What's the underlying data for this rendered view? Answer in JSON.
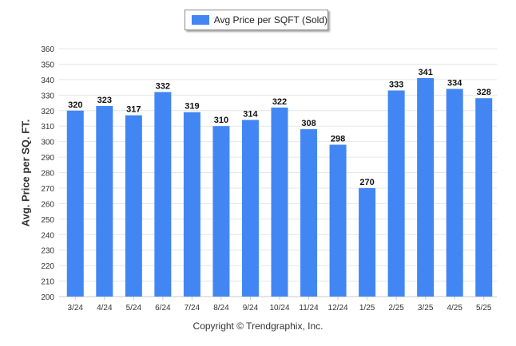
{
  "chart_data": {
    "type": "bar",
    "categories": [
      "3/24",
      "4/24",
      "5/24",
      "6/24",
      "7/24",
      "8/24",
      "9/24",
      "10/24",
      "11/24",
      "12/24",
      "1/25",
      "2/25",
      "3/25",
      "4/25",
      "5/25"
    ],
    "series": [
      {
        "name": "Avg Price per SQFT (Sold)",
        "values": [
          320,
          323,
          317,
          332,
          319,
          310,
          314,
          322,
          308,
          298,
          270,
          333,
          341,
          334,
          328
        ],
        "color": "#4286f4"
      }
    ],
    "ylabel": "Avg. Price per SQ. FT.",
    "xlabel": "",
    "ylim": [
      200,
      360
    ],
    "yticks": [
      200,
      210,
      220,
      230,
      240,
      250,
      260,
      270,
      280,
      290,
      300,
      310,
      320,
      330,
      340,
      350,
      360
    ],
    "grid": true,
    "legend_position": "top-center",
    "data_labels": true
  },
  "footer": {
    "copyright": "Copyright © Trendgraphix, Inc."
  }
}
